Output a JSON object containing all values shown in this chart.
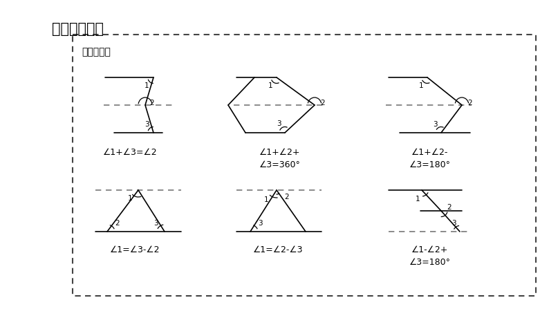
{
  "title": "【模型展示】",
  "subtitle": "模型总结：",
  "formulas": [
    "∠1+∠3=∠2",
    "∠1+∠2+\n∠3=360°",
    "∠1+∠2-\n∠3=180°",
    "∠1=∠3-∠2",
    "∠1=∠2-∠3",
    "∠1-∠2+\n∠3=180°"
  ],
  "line_color": "black",
  "dash_color": "#777777",
  "title_fontsize": 15,
  "subtitle_fontsize": 10,
  "formula_fontsize": 9,
  "label_fontsize": 7.5
}
